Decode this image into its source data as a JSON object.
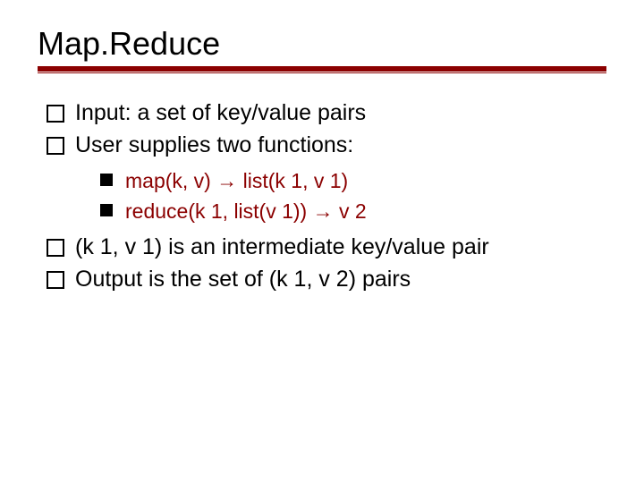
{
  "title": "Map.Reduce",
  "colors": {
    "rule": "#8b0000",
    "sub_text": "#8b0000",
    "text": "#000000",
    "background": "#ffffff"
  },
  "typography": {
    "title_fontsize": 36,
    "l1_fontsize": 25,
    "l2_fontsize": 23,
    "font_family": "Verdana"
  },
  "bullets": {
    "l1_marker": "hollow-square",
    "l2_marker": "filled-square"
  },
  "items": [
    {
      "text": "Input: a set of key/value pairs"
    },
    {
      "text": "User supplies two functions:",
      "sub": [
        {
          "text": "map(k, v) → list(k 1, v 1)"
        },
        {
          "text": "reduce(k 1, list(v 1)) → v 2"
        }
      ]
    },
    {
      "text": "(k 1, v 1) is an intermediate key/value pair"
    },
    {
      "text": "Output is the set of (k 1, v 2) pairs"
    }
  ]
}
